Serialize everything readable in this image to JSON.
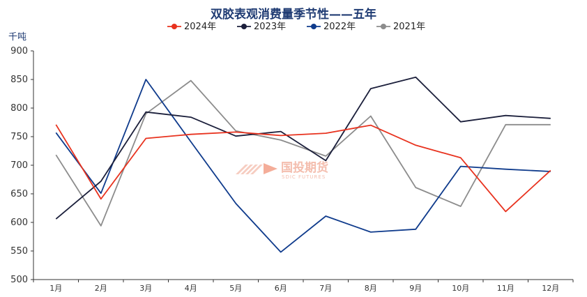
{
  "chart_data": {
    "type": "line",
    "title": "双胶表观消费量季节性——五年",
    "ylabel": "千吨",
    "ylim": [
      500,
      900
    ],
    "yticks": [
      500,
      550,
      600,
      650,
      700,
      750,
      800,
      850,
      900
    ],
    "categories": [
      "1月",
      "2月",
      "3月",
      "4月",
      "5月",
      "6月",
      "7月",
      "8月",
      "9月",
      "10月",
      "11月",
      "12月"
    ],
    "legend_position": "top",
    "grid": false,
    "series": [
      {
        "name": "2024年",
        "color": "#e8321e",
        "values": [
          771,
          641,
          747,
          754,
          758,
          752,
          756,
          770,
          735,
          713,
          619,
          691
        ]
      },
      {
        "name": "2023年",
        "color": "#1b1f3b",
        "values": [
          606,
          672,
          793,
          784,
          751,
          759,
          708,
          834,
          854,
          776,
          787,
          782
        ]
      },
      {
        "name": "2022年",
        "color": "#0f3b8c",
        "values": [
          757,
          651,
          850,
          741,
          633,
          548,
          611,
          583,
          588,
          698,
          693,
          689
        ]
      },
      {
        "name": "2021年",
        "color": "#8c8c8c",
        "values": [
          718,
          594,
          790,
          848,
          760,
          744,
          716,
          786,
          661,
          628,
          771,
          771
        ]
      }
    ]
  },
  "watermark": {
    "cn": "国投期货",
    "en": "SDIC FUTURES"
  }
}
